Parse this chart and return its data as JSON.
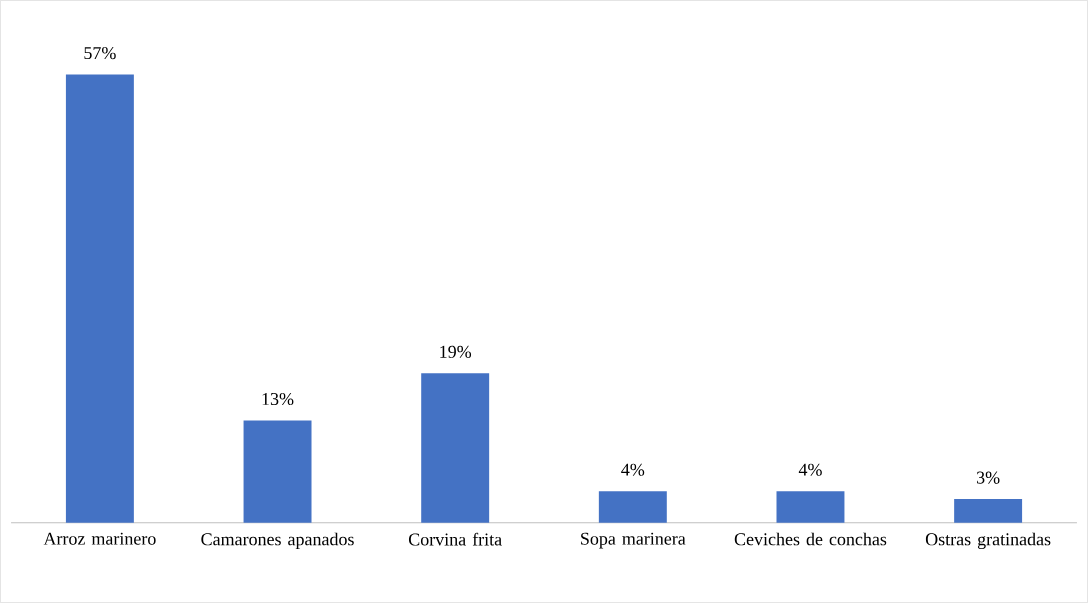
{
  "chart_data": {
    "type": "bar",
    "categories": [
      "Arroz marinero",
      "Camarones apanados",
      "Corvina frita",
      "Sopa marinera",
      "Ceviches de conchas",
      "Ostras gratinadas"
    ],
    "values": [
      57,
      13,
      19,
      4,
      4,
      3
    ],
    "value_labels": [
      "57%",
      "13%",
      "19%",
      "4%",
      "4%",
      "3%"
    ],
    "color": "#4472c4"
  }
}
